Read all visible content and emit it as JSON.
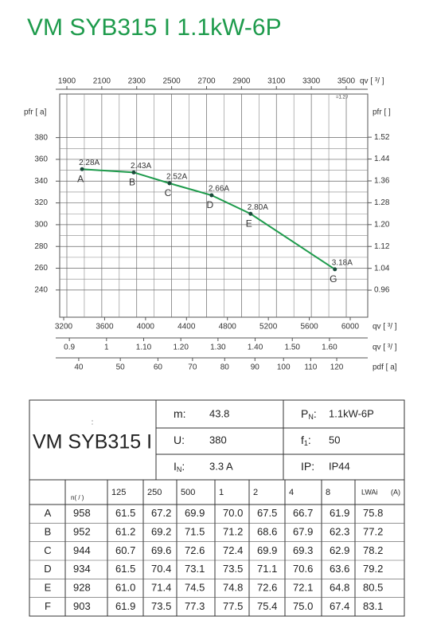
{
  "title": "VM SYB315 I 1.1kW-6P",
  "chart_data": {
    "type": "line",
    "x_label": "qv [  ³/   ]",
    "x_note": "=1.2  /",
    "y_label": "pfr [  a]",
    "y2_label": "pfr [    ]",
    "x": [
      1987,
      2283,
      2488,
      2729,
      2952,
      3435
    ],
    "values": [
      351,
      348,
      338,
      327,
      310,
      259
    ],
    "color": "#1e9b4c",
    "point_labels": [
      "A",
      "B",
      "C",
      "D",
      "E",
      "G"
    ],
    "current_labels": [
      "2.28A",
      "2.43A",
      "2.52A",
      "2.66A",
      "2.80A",
      "3.18A"
    ],
    "xlim": [
      1859,
      3623
    ],
    "xticks": [
      1900,
      2100,
      2300,
      2500,
      2700,
      2900,
      3100,
      3300,
      3500
    ],
    "ylim": [
      215,
      420
    ],
    "yticks": [
      240,
      260,
      280,
      300,
      320,
      340,
      360,
      380
    ],
    "y2lim": [
      0.861,
      1.678
    ],
    "y2ticks": [
      0.96,
      1.04,
      1.12,
      {
        "value": 1.2,
        "label": "1.20"
      },
      1.28,
      1.36,
      1.44,
      1.52
    ],
    "grid": true,
    "grid_minor": true,
    "bottom_axes": [
      {
        "label": "qv [  ³/  ]",
        "lim": [
          3161,
          6171
        ],
        "scale": "linear",
        "ticks": [
          3200,
          3600,
          4000,
          4400,
          4800,
          5200,
          5600,
          6000
        ]
      },
      {
        "label": "qv [  ³/  ]",
        "lim": [
          0.874,
          1.703
        ],
        "scale": "linear",
        "ticks": [
          0.9,
          1,
          {
            "value": 1.1,
            "label": "1.10"
          },
          {
            "value": 1.2,
            "label": "1.20"
          },
          {
            "value": 1.3,
            "label": "1.30"
          },
          {
            "value": 1.4,
            "label": "1.40"
          },
          {
            "value": 1.5,
            "label": "1.50"
          },
          {
            "value": 1.6,
            "label": "1.60"
          }
        ]
      },
      {
        "label": "pdf [  a]",
        "lim": [
          35.8,
          132.5
        ],
        "scale": "sqrt",
        "ticks": [
          40,
          50,
          60,
          70,
          80,
          90,
          100,
          110,
          120
        ]
      }
    ]
  },
  "table": {
    "model_prefix": ":",
    "model": "VM SYB315 I",
    "specs": [
      {
        "sym": "m:",
        "val": "43.8"
      },
      {
        "sym": "U:",
        "val": "380"
      },
      {
        "sym": "I",
        "sub": "N",
        "sep": ":",
        "val": "3.3 A"
      },
      {
        "sym": "P",
        "sub": "N",
        "sep": ":",
        "val": "1.1kW-6P"
      },
      {
        "sym": "f",
        "sub": "1",
        "sep": ":",
        "val": "50"
      },
      {
        "sym": "IP:",
        "val": "IP44"
      }
    ],
    "header": [
      "n( /  )",
      "125",
      "250",
      "500",
      "1",
      "2",
      "4",
      "8",
      "LWAi",
      "(A)"
    ],
    "rows": [
      [
        "A",
        "958",
        "61.5",
        "67.2",
        "69.9",
        "70.0",
        "67.5",
        "66.7",
        "61.9",
        "75.8"
      ],
      [
        "B",
        "952",
        "61.2",
        "69.2",
        "71.5",
        "71.2",
        "68.6",
        "67.9",
        "62.3",
        "77.2"
      ],
      [
        "C",
        "944",
        "60.7",
        "69.6",
        "72.6",
        "72.4",
        "69.9",
        "69.3",
        "62.9",
        "78.2"
      ],
      [
        "D",
        "934",
        "61.5",
        "70.4",
        "73.1",
        "73.5",
        "71.1",
        "70.6",
        "63.6",
        "79.2"
      ],
      [
        "E",
        "928",
        "61.0",
        "71.4",
        "74.5",
        "74.8",
        "72.6",
        "72.1",
        "64.8",
        "80.5"
      ],
      [
        "F",
        "903",
        "61.9",
        "73.5",
        "77.3",
        "77.5",
        "75.4",
        "75.0",
        "67.4",
        "83.1"
      ]
    ]
  }
}
